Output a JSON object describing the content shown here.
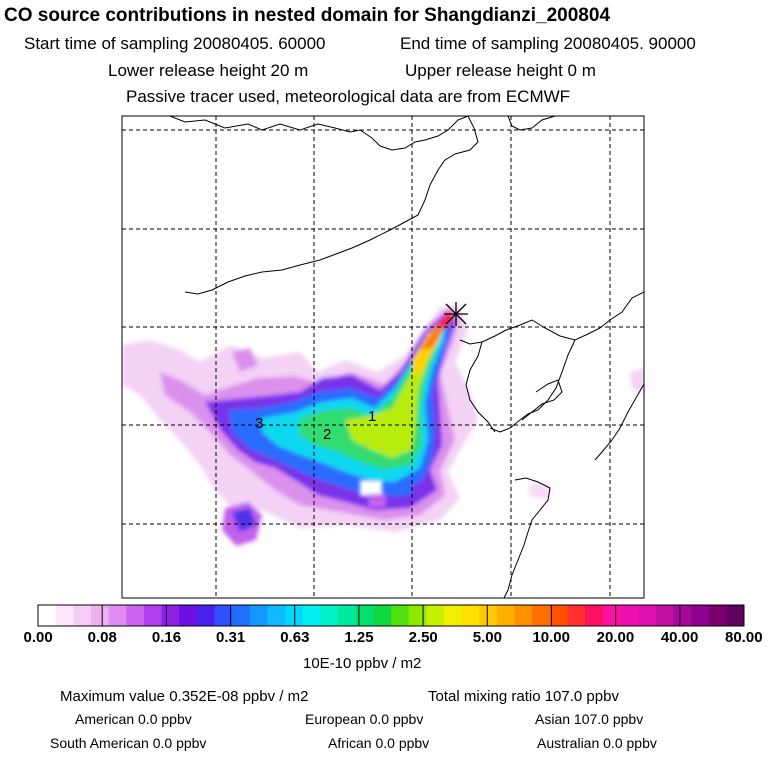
{
  "header": {
    "title": "CO  source contributions in nested domain for Shangdianzi_200804",
    "start_time": "Start time of sampling 20080405. 60000",
    "end_time": "End time of sampling 20080405. 90000",
    "lower_height": "Lower release height   20 m",
    "upper_height": "Upper release height    0 m",
    "note": "Passive tracer used, meteorological data are from ECMWF"
  },
  "map": {
    "region_labels": [
      "1",
      "2",
      "3"
    ],
    "receptor_marker": "star-cross-icon"
  },
  "colorbar": {
    "tick_labels": [
      "0.00",
      "0.08",
      "0.16",
      "0.31",
      "0.63",
      "1.25",
      "2.50",
      "5.00",
      "10.00",
      "20.00",
      "40.00",
      "80.00"
    ],
    "units": "10E-10 ppbv / m2",
    "colors": [
      "#ffffff",
      "#fbe6fb",
      "#f5ccf5",
      "#eeb0f2",
      "#e08cf0",
      "#cc66ef",
      "#b040ef",
      "#9020e8",
      "#6a10e0",
      "#4a20f0",
      "#3050ff",
      "#2070ff",
      "#1098ff",
      "#10b8ff",
      "#00d8ff",
      "#00f0f0",
      "#00f0c8",
      "#00e8a0",
      "#00e070",
      "#10d840",
      "#50e010",
      "#90e800",
      "#c8f000",
      "#f0f000",
      "#ffe000",
      "#ffc800",
      "#ffb000",
      "#ff9000",
      "#ff7000",
      "#ff5000",
      "#ff3030",
      "#ff1060",
      "#ff10a0",
      "#f010b0",
      "#e010b0",
      "#c010a0",
      "#a80898",
      "#900090",
      "#780070",
      "#600060"
    ]
  },
  "footer": {
    "max_value": "Maximum value  0.352E-08 ppbv / m2",
    "total": "Total mixing ratio      107.0 ppbv",
    "american": "American         0.0 ppbv",
    "european": "European         0.0 ppbv",
    "asian": "Asian     107.0 ppbv",
    "south_american": "South American         0.0 ppbv",
    "african": "African         0.0 ppbv",
    "australian": "Australian         0.0 ppbv"
  }
}
